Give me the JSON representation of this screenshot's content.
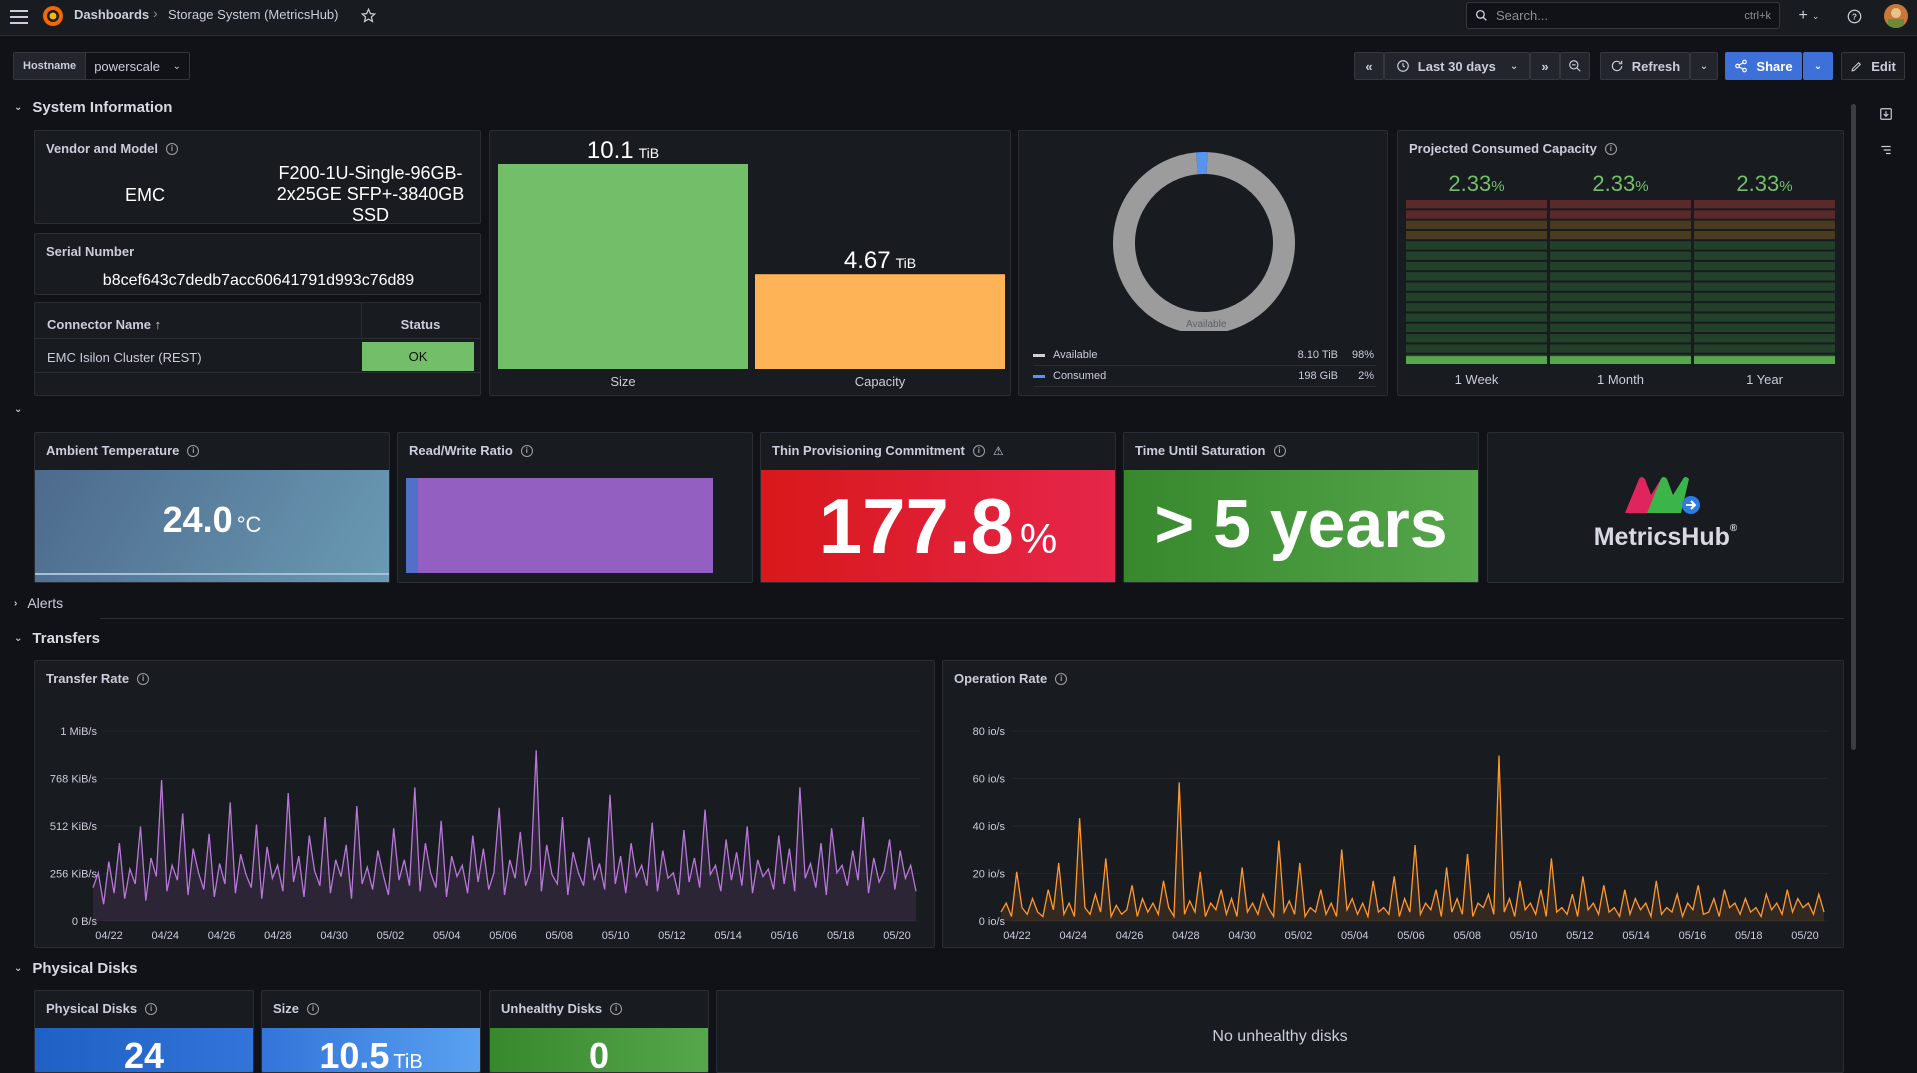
{
  "topbar": {
    "breadcrumb_root": "Dashboards",
    "breadcrumb_sep": "›",
    "dashboard_title": "Storage System (MetricsHub)",
    "search_placeholder": "Search...",
    "search_shortcut": "ctrl+k",
    "plus_label": "+"
  },
  "toolbar": {
    "variable_label": "Hostname",
    "variable_value": "powerscale",
    "time_range": "Last 30 days",
    "refresh_label": "Refresh",
    "share_label": "Share",
    "edit_label": "Edit"
  },
  "rows": {
    "system_info": "System Information",
    "alerts": "Alerts",
    "transfers": "Transfers",
    "physical_disks": "Physical Disks"
  },
  "vendor_panel": {
    "title": "Vendor and Model",
    "vendor": "EMC",
    "model_lines": [
      "F200-1U-Single-96GB-",
      "2x25GE SFP+-3840GB",
      "SSD"
    ]
  },
  "serial_panel": {
    "title": "Serial Number",
    "value": "b8cef643c7dedb7acc60641791d993c76d89"
  },
  "connector_table": {
    "col_name": "Connector Name",
    "col_status": "Status",
    "rows": [
      {
        "name": "EMC Isilon Cluster (REST)",
        "status": "OK"
      }
    ]
  },
  "size_capacity": {
    "chart_data": {
      "type": "bar",
      "categories": [
        "Size",
        "Capacity"
      ],
      "values": [
        10.1,
        4.67
      ],
      "unit": "TiB",
      "value_labels": [
        "10.1",
        "4.67"
      ],
      "colors": [
        "#73bf69",
        "#ffb357"
      ]
    }
  },
  "donut": {
    "chart_data": {
      "type": "pie",
      "center_label": "Available",
      "legend": [
        {
          "name": "Available",
          "value": "8.10 TiB",
          "percent": "98%",
          "fraction": 0.98,
          "color": "#9c9c9c"
        },
        {
          "name": "Consumed",
          "value": "198 GiB",
          "percent": "2%",
          "fraction": 0.02,
          "color": "#5794f2"
        }
      ]
    }
  },
  "projected": {
    "title": "Projected Consumed Capacity",
    "chart_data": {
      "type": "bar",
      "categories": [
        "1 Week",
        "1 Month",
        "1 Year"
      ],
      "values": [
        2.33,
        2.33,
        2.33
      ],
      "value_labels": [
        "2.33",
        "2.33",
        "2.33"
      ],
      "unit": "%"
    }
  },
  "ambient": {
    "title": "Ambient Temperature",
    "value": "24.0",
    "unit": "°C"
  },
  "rw_ratio": {
    "title": "Read/Write Ratio",
    "read_fraction": 0.04
  },
  "thin_prov": {
    "title": "Thin Provisioning Commitment",
    "value": "177.8",
    "unit": "%"
  },
  "saturation": {
    "title": "Time Until Saturation",
    "value": "> 5 years"
  },
  "logo": {
    "text": "MetricsHub",
    "reg": "®"
  },
  "transfer_rate": {
    "title": "Transfer Rate",
    "chart_data": {
      "type": "line",
      "color": "#b877d9",
      "y_ticks": [
        "1 MiB/s",
        "768 KiB/s",
        "512 KiB/s",
        "256 KiB/s",
        "0 B/s"
      ],
      "x_ticks": [
        "04/22",
        "04/24",
        "04/26",
        "04/28",
        "04/30",
        "05/02",
        "05/04",
        "05/06",
        "05/08",
        "05/10",
        "05/12",
        "05/14",
        "05/16",
        "05/18",
        "05/20"
      ],
      "ylim_kib": [
        0,
        1024
      ],
      "values_kib": [
        180,
        260,
        90,
        320,
        150,
        420,
        120,
        280,
        200,
        510,
        110,
        340,
        240,
        760,
        160,
        300,
        220,
        580,
        140,
        390,
        260,
        170,
        470,
        130,
        310,
        200,
        640,
        150,
        360,
        250,
        180,
        520,
        120,
        400,
        230,
        300,
        160,
        690,
        210,
        350,
        130,
        460,
        270,
        190,
        560,
        150,
        330,
        240,
        410,
        120,
        620,
        200,
        290,
        170,
        380,
        250,
        140,
        500,
        220,
        330,
        190,
        720,
        160,
        420,
        260,
        180,
        540,
        130,
        350,
        240,
        300,
        150,
        460,
        210,
        390,
        170,
        260,
        610,
        140,
        330,
        230,
        480,
        190,
        280,
        920,
        160,
        410,
        250,
        200,
        560,
        140,
        370,
        260,
        190,
        450,
        220,
        310,
        170,
        680,
        200,
        350,
        150,
        420,
        240,
        300,
        190,
        530,
        160,
        380,
        230,
        260,
        140,
        490,
        210,
        340,
        180,
        600,
        250,
        300,
        160,
        440,
        220,
        370,
        190,
        510,
        150,
        330,
        240,
        280,
        170,
        460,
        200,
        390,
        160,
        720,
        230,
        310,
        180,
        420,
        140,
        500,
        260,
        300,
        190,
        380,
        220,
        560,
        150,
        340,
        210,
        270,
        440,
        170,
        380,
        230,
        300,
        160
      ]
    }
  },
  "operation_rate": {
    "title": "Operation Rate",
    "chart_data": {
      "type": "line",
      "color": "#ff9830",
      "y_ticks": [
        "80 io/s",
        "60 io/s",
        "40 io/s",
        "20 io/s",
        "0 io/s"
      ],
      "x_ticks": [
        "04/22",
        "04/24",
        "04/26",
        "04/28",
        "04/30",
        "05/02",
        "05/04",
        "05/06",
        "05/08",
        "05/10",
        "05/12",
        "05/14",
        "05/16",
        "05/18",
        "05/20"
      ],
      "ylim": [
        0,
        85
      ],
      "values": [
        4,
        8,
        2,
        22,
        6,
        3,
        10,
        4,
        2,
        14,
        5,
        26,
        3,
        8,
        2,
        46,
        6,
        3,
        12,
        4,
        28,
        2,
        7,
        3,
        5,
        16,
        2,
        10,
        4,
        8,
        3,
        18,
        6,
        2,
        62,
        3,
        9,
        4,
        22,
        2,
        8,
        5,
        14,
        3,
        10,
        2,
        24,
        4,
        8,
        3,
        12,
        6,
        2,
        36,
        4,
        9,
        3,
        26,
        2,
        6,
        4,
        14,
        3,
        8,
        2,
        32,
        5,
        10,
        3,
        8,
        2,
        18,
        4,
        6,
        3,
        20,
        2,
        10,
        4,
        34,
        3,
        8,
        5,
        14,
        2,
        24,
        4,
        10,
        3,
        30,
        2,
        8,
        6,
        12,
        3,
        74,
        4,
        10,
        2,
        18,
        5,
        8,
        3,
        14,
        2,
        28,
        4,
        6,
        3,
        12,
        2,
        20,
        5,
        8,
        3,
        16,
        4,
        6,
        2,
        14,
        3,
        10,
        5,
        8,
        2,
        18,
        3,
        6,
        4,
        12,
        2,
        8,
        5,
        16,
        3,
        4,
        10,
        2,
        14,
        6,
        8,
        3,
        10,
        4,
        6,
        2,
        12,
        5,
        8,
        3,
        14,
        4,
        10,
        6,
        8,
        3,
        12,
        4
      ]
    }
  },
  "phys_disks": {
    "title": "Physical Disks",
    "value": "24"
  },
  "disk_size": {
    "title": "Size",
    "value": "10.5",
    "unit": "TiB"
  },
  "unhealthy": {
    "title": "Unhealthy Disks",
    "value": "0"
  },
  "no_unhealthy": "No unhealthy disks"
}
